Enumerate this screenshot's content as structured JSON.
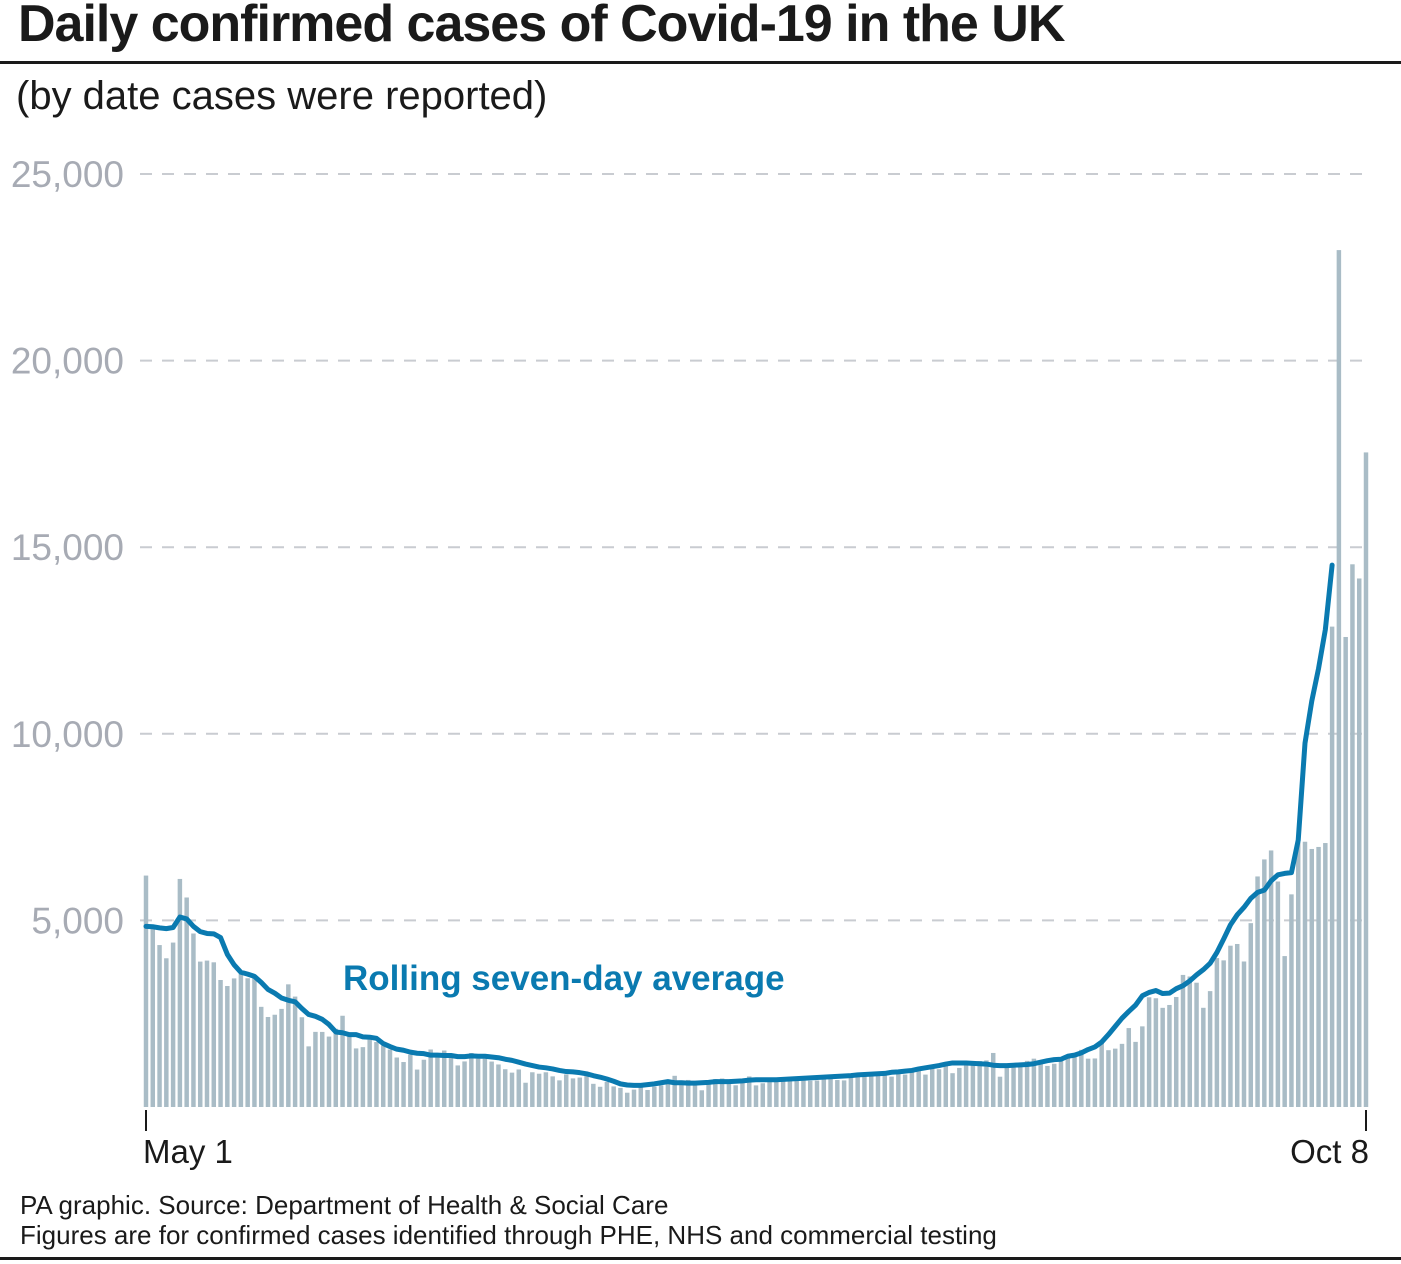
{
  "title": "Daily confirmed cases of Covid-19 in the UK",
  "subtitle": "(by date cases were reported)",
  "footer": {
    "source": "PA graphic. Source: Department of Health & Social Care",
    "note": "Figures are for confirmed cases identified through PHE, NHS and commercial testing"
  },
  "colors": {
    "bars": "#a9bcc6",
    "line": "#0a7ab0",
    "ytick": "#a7abb4",
    "grid": "#c9ccd1",
    "text": "#1a1a1a"
  },
  "chart_data": {
    "type": "bar",
    "y_ticks": [
      "25,000",
      "20,000",
      "15,000",
      "10,000",
      "5,000"
    ],
    "y_tick_values": [
      25000,
      20000,
      15000,
      10000,
      5000
    ],
    "ylim": [
      0,
      25000
    ],
    "x_tick_labels": [
      "May 1",
      "Oct 8"
    ],
    "x_range": [
      "2020-05-01",
      "2020-10-08"
    ],
    "grid": true,
    "annotation": "Rolling seven-day average",
    "series": [
      {
        "type": "bar",
        "values": [
          6201,
          4806,
          4339,
          3985,
          4406,
          6111,
          5614,
          4649,
          3896,
          3923,
          3877,
          3403,
          3242,
          3446,
          3560,
          3450,
          3534,
          2684,
          2412,
          2472,
          2629,
          3287,
          2959,
          2405,
          1625,
          2013,
          2012,
          1887,
          2095,
          2445,
          1936,
          1570,
          1604,
          1805,
          1741,
          1650,
          1541,
          1326,
          1205,
          1403,
          1003,
          1266,
          1541,
          1425,
          1514,
          1386,
          1114,
          1221,
          1447,
          1295,
          1295,
          1218,
          1140,
          1012,
          921,
          1006,
          650,
          931,
          892,
          931,
          821,
          714,
          874,
          767,
          789,
          830,
          621,
          542,
          674,
          552,
          512,
          383,
          466,
          530,
          456,
          544,
          580,
          687,
          836,
          713,
          725,
          688,
          448,
          614,
          748,
          763,
          631,
          582,
          714,
          819,
          579,
          636,
          684,
          750,
          770,
          755,
          777,
          751,
          703,
          711,
          755,
          866,
          723,
          713,
          802,
          853,
          819,
          851,
          864,
          871,
          814,
          905,
          869,
          948,
          981,
          868,
          1049,
          1012,
          1182,
          906,
          1047,
          1184,
          1117,
          1232,
          1248,
          1448,
          812,
          1062,
          1058,
          1097,
          1236,
          1295,
          1198,
          1101,
          1159,
          1329,
          1326,
          1432,
          1531,
          1295,
          1301,
          1714,
          1522,
          1564,
          1692,
          2115,
          1745,
          2161,
          2940,
          2914,
          2657,
          2734,
          2948,
          3539,
          3497,
          3330,
          2658,
          3105,
          3991,
          3929,
          4322,
          4368,
          3899,
          4926,
          6178,
          6634,
          6874,
          6042,
          4044,
          5698,
          7143,
          7108,
          6914,
          6968,
          7073,
          12872,
          22961,
          12594,
          14542,
          14162,
          17540
        ]
      },
      {
        "type": "line",
        "name": "Rolling seven-day average",
        "values": [
          4840,
          4830,
          4800,
          4780,
          4810,
          5090,
          5040,
          4840,
          4700,
          4650,
          4640,
          4540,
          4090,
          3810,
          3610,
          3560,
          3500,
          3340,
          3150,
          3050,
          2920,
          2860,
          2820,
          2640,
          2480,
          2430,
          2350,
          2210,
          2010,
          1990,
          1940,
          1940,
          1880,
          1870,
          1840,
          1700,
          1620,
          1550,
          1520,
          1470,
          1440,
          1430,
          1390,
          1390,
          1380,
          1380,
          1350,
          1350,
          1370,
          1360,
          1360,
          1340,
          1320,
          1280,
          1250,
          1200,
          1150,
          1110,
          1070,
          1050,
          1020,
          980,
          950,
          940,
          920,
          890,
          840,
          800,
          750,
          690,
          620,
          590,
          580,
          580,
          600,
          620,
          650,
          680,
          650,
          650,
          640,
          640,
          650,
          660,
          680,
          680,
          680,
          690,
          700,
          720,
          730,
          730,
          730,
          730,
          740,
          750,
          760,
          770,
          780,
          790,
          800,
          810,
          820,
          830,
          840,
          860,
          870,
          880,
          890,
          900,
          930,
          940,
          960,
          980,
          1020,
          1050,
          1080,
          1110,
          1150,
          1180,
          1180,
          1180,
          1170,
          1160,
          1150,
          1120,
          1110,
          1110,
          1120,
          1130,
          1140,
          1160,
          1200,
          1240,
          1270,
          1280,
          1360,
          1390,
          1450,
          1540,
          1610,
          1740,
          1940,
          2160,
          2380,
          2560,
          2730,
          2980,
          3070,
          3120,
          3040,
          3050,
          3170,
          3250,
          3380,
          3540,
          3680,
          3850,
          4140,
          4500,
          4880,
          5150,
          5350,
          5590,
          5750,
          5810,
          6060,
          6220,
          6260,
          6280,
          7150,
          9750,
          10880,
          11750,
          12790,
          14520
        ]
      }
    ]
  }
}
